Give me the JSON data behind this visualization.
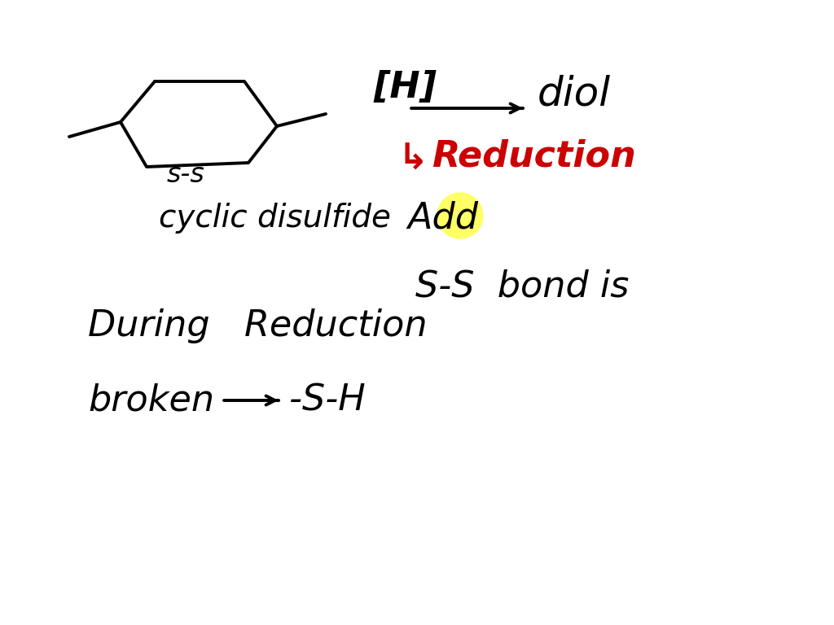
{
  "bg_color": "#ffffff",
  "ring_color": "#000000",
  "ring_linewidth": 2.8,
  "text_color": "#000000",
  "reduction_color": "#cc0000",
  "highlight_color": "#ffff66",
  "label_ss": "s-s",
  "label_cyclic": "cyclic disulfide",
  "label_H": "[H]",
  "label_diol": "diol",
  "label_reduction": "Reduction",
  "label_add": "Add",
  "label_line1a": "S-S  bond is",
  "label_line1b": "During   Reduction",
  "label_line2": "broken",
  "label_arrow": "→",
  "label_sh": "-S-H",
  "font_size_main": 28,
  "font_size_small": 24,
  "font_size_large": 32
}
